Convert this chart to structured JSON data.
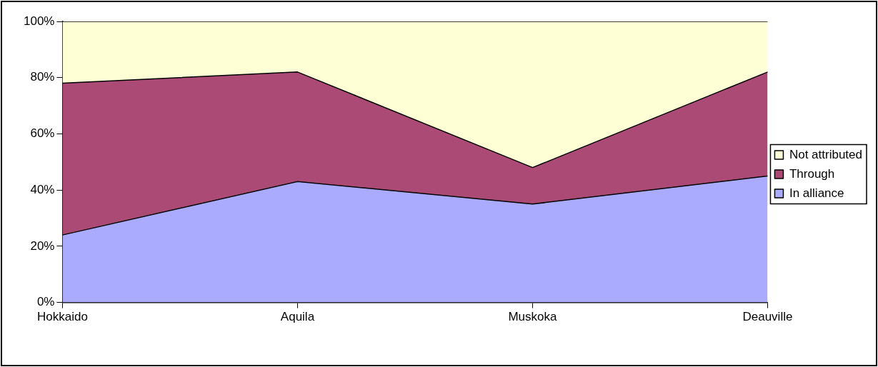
{
  "chart_data": {
    "type": "area",
    "stacked": true,
    "categories": [
      "Hokkaido",
      "Aquila",
      "Muskoka",
      "Deauville"
    ],
    "series": [
      {
        "name": "In alliance",
        "color": "#aaaafe",
        "values": [
          24,
          43,
          35,
          45
        ]
      },
      {
        "name": "Through",
        "color": "#aa4a75",
        "values": [
          54,
          39,
          13,
          37
        ]
      },
      {
        "name": "Not attributed",
        "color": "#ffffd6",
        "values": [
          22,
          18,
          52,
          18
        ]
      }
    ],
    "ylim": [
      0,
      100
    ],
    "yticks": [
      {
        "value": 0,
        "label": "0%"
      },
      {
        "value": 20,
        "label": "20%"
      },
      {
        "value": 40,
        "label": "40%"
      },
      {
        "value": 60,
        "label": "60%"
      },
      {
        "value": 80,
        "label": "80%"
      },
      {
        "value": 100,
        "label": "100%"
      }
    ],
    "grid": false,
    "legend": "right"
  }
}
